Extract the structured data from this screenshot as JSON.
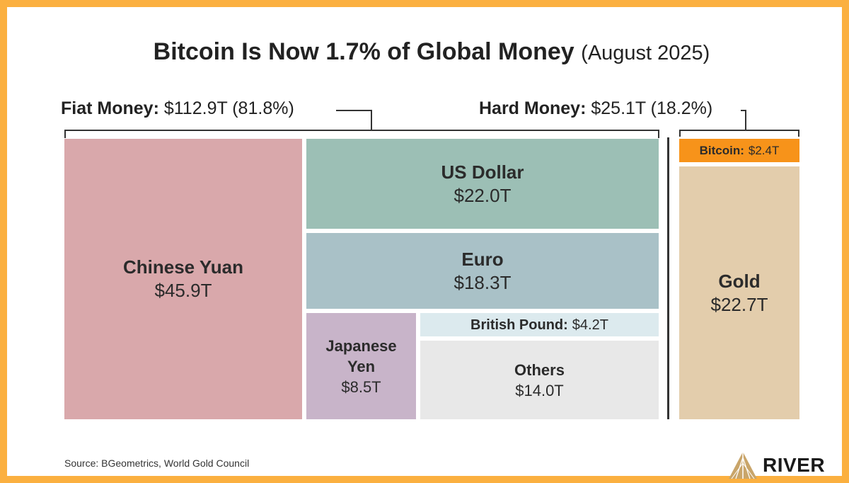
{
  "title": {
    "main": "Bitcoin Is Now 1.7% of Global Money",
    "sub": "(August 2025)"
  },
  "fiat": {
    "label": "Fiat Money:",
    "value": "$112.9T (81.8%)"
  },
  "hard": {
    "label": "Hard Money:",
    "value": "$25.1T (18.2%)"
  },
  "source": "Source: BGeometrics, World Gold Council",
  "brand": "RIVER",
  "colors": {
    "border": "#FBB040",
    "yuan": "#D9A8AB",
    "dollar": "#9CBFB5",
    "euro": "#A9C1C7",
    "yen": "#C8B4C9",
    "pound": "#DCEAEE",
    "others": "#E8E8E8",
    "bitcoin": "#F7931A",
    "gold": "#E3CDAC"
  },
  "chart_data": {
    "type": "treemap",
    "title": "Bitcoin Is Now 1.7% of Global Money (August 2025)",
    "unit": "$T",
    "groups": [
      {
        "name": "Fiat Money",
        "value": 112.9,
        "percent": 81.8,
        "items": [
          {
            "name": "Chinese Yuan",
            "value": 45.9,
            "label": "$45.9T"
          },
          {
            "name": "US Dollar",
            "value": 22.0,
            "label": "$22.0T"
          },
          {
            "name": "Euro",
            "value": 18.3,
            "label": "$18.3T"
          },
          {
            "name": "Japanese Yen",
            "value": 8.5,
            "label": "$8.5T"
          },
          {
            "name": "British Pound:",
            "value": 4.2,
            "label": "$4.2T"
          },
          {
            "name": "Others",
            "value": 14.0,
            "label": "$14.0T"
          }
        ]
      },
      {
        "name": "Hard Money",
        "value": 25.1,
        "percent": 18.2,
        "items": [
          {
            "name": "Bitcoin:",
            "value": 2.4,
            "label": "$2.4T"
          },
          {
            "name": "Gold",
            "value": 22.7,
            "label": "$22.7T"
          }
        ]
      }
    ]
  }
}
